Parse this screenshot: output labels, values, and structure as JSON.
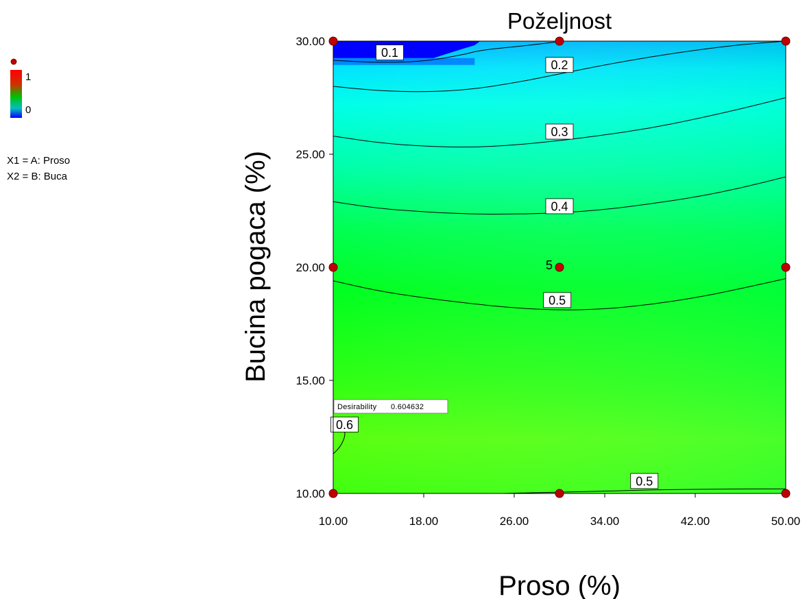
{
  "legend": {
    "max_label": "1",
    "min_label": "0",
    "max_color": "#ff2020",
    "min_color": "#0000ff",
    "factor_lines": [
      "X1 = A: Proso",
      "X2 = B: Buca"
    ],
    "marker_icon": "design-point-dot"
  },
  "tooltip": {
    "label": "Desirability",
    "value": "0.604632"
  },
  "colors": {
    "low": "#0000ff",
    "mid_low": "#00ffff",
    "mid": "#00ff20",
    "high": "#60ff10",
    "point_fill": "#c00000",
    "contour_line": "#000000"
  },
  "chart_data": {
    "type": "heatmap",
    "title": "Poželjnost",
    "xlabel": "Proso (%)",
    "ylabel": "Bucina pogaca (%)",
    "xlim": [
      10,
      50
    ],
    "ylim": [
      10,
      30
    ],
    "x_ticks": [
      "10.00",
      "18.00",
      "26.00",
      "34.00",
      "42.00",
      "50.00"
    ],
    "y_ticks": [
      "10.00",
      "15.00",
      "20.00",
      "25.00",
      "30.00"
    ],
    "contours": [
      {
        "level": "0.1",
        "points": [
          [
            10,
            29.15
          ],
          [
            14,
            29.05
          ],
          [
            18,
            29.1
          ],
          [
            21.5,
            29.4
          ],
          [
            23,
            29.6
          ],
          [
            27,
            29.8
          ],
          [
            30,
            29.98
          ]
        ],
        "label_at": [
          15,
          29.5
        ]
      },
      {
        "level": "0.2",
        "points": [
          [
            10,
            28.0
          ],
          [
            14,
            27.8
          ],
          [
            18,
            27.75
          ],
          [
            22,
            27.85
          ],
          [
            26,
            28.15
          ],
          [
            30,
            28.55
          ],
          [
            34,
            28.95
          ],
          [
            38,
            29.3
          ],
          [
            42,
            29.6
          ],
          [
            46,
            29.85
          ],
          [
            50,
            30.0
          ]
        ],
        "label_at": [
          30,
          28.95
        ]
      },
      {
        "level": "0.3",
        "points": [
          [
            10,
            25.8
          ],
          [
            14,
            25.5
          ],
          [
            18,
            25.35
          ],
          [
            22,
            25.3
          ],
          [
            26,
            25.4
          ],
          [
            30,
            25.6
          ],
          [
            34,
            25.85
          ],
          [
            38,
            26.15
          ],
          [
            42,
            26.55
          ],
          [
            46,
            27.0
          ],
          [
            50,
            27.5
          ]
        ],
        "label_at": [
          30,
          26.0
        ]
      },
      {
        "level": "0.4",
        "points": [
          [
            10,
            22.9
          ],
          [
            14,
            22.6
          ],
          [
            18,
            22.45
          ],
          [
            22,
            22.35
          ],
          [
            26,
            22.35
          ],
          [
            30,
            22.4
          ],
          [
            34,
            22.55
          ],
          [
            38,
            22.8
          ],
          [
            42,
            23.1
          ],
          [
            46,
            23.5
          ],
          [
            50,
            24.0
          ]
        ],
        "label_at": [
          30,
          22.7
        ]
      },
      {
        "level": "0.5",
        "points": [
          [
            10,
            19.4
          ],
          [
            14,
            18.95
          ],
          [
            18,
            18.65
          ],
          [
            22,
            18.4
          ],
          [
            26,
            18.2
          ],
          [
            30,
            18.1
          ],
          [
            34,
            18.15
          ],
          [
            38,
            18.35
          ],
          [
            42,
            18.65
          ],
          [
            46,
            19.05
          ],
          [
            50,
            19.5
          ]
        ],
        "label_at": [
          29.8,
          18.55
        ]
      },
      {
        "level": "0.5",
        "points": [
          [
            25,
            10.0
          ],
          [
            30,
            10.06
          ],
          [
            34,
            10.1
          ],
          [
            38,
            10.16
          ],
          [
            42,
            10.18
          ],
          [
            46,
            10.2
          ],
          [
            50,
            10.2
          ]
        ],
        "label_at": [
          37.5,
          10.55
        ]
      },
      {
        "level": "0.6",
        "points": [
          [
            10,
            11.75
          ],
          [
            10.6,
            12.05
          ],
          [
            11,
            12.45
          ],
          [
            11.05,
            12.75
          ],
          [
            10.7,
            13.0
          ],
          [
            10,
            13.15
          ]
        ],
        "label_at": [
          11.0,
          13.05
        ]
      }
    ],
    "design_points": [
      {
        "x": 10,
        "y": 30
      },
      {
        "x": 30,
        "y": 30
      },
      {
        "x": 50,
        "y": 30
      },
      {
        "x": 10,
        "y": 20
      },
      {
        "x": 30,
        "y": 20,
        "label": "5"
      },
      {
        "x": 50,
        "y": 20
      },
      {
        "x": 10,
        "y": 10
      },
      {
        "x": 30,
        "y": 10
      },
      {
        "x": 50,
        "y": 10
      }
    ],
    "low_region": {
      "x": [
        10,
        22.5
      ],
      "y": [
        29.25,
        30
      ],
      "value": "0.0"
    }
  }
}
